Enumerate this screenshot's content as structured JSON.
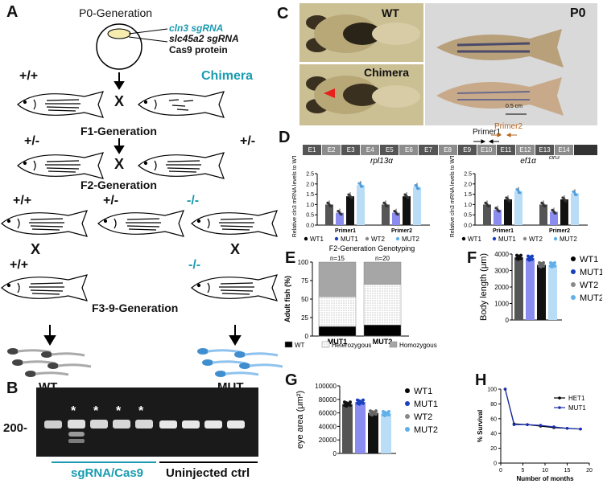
{
  "panel_labels": [
    "A",
    "B",
    "C",
    "D",
    "E",
    "F",
    "G",
    "H"
  ],
  "panelA": {
    "p0_title": "P0-Generation",
    "inject": [
      "cln3 sgRNA",
      "slc45a2 sgRNA",
      "Cas9 protein"
    ],
    "chimera": "Chimera",
    "wt_geno": "+/+",
    "f1_title": "F1-Generation",
    "f1_genos": [
      "+/-",
      "+/-"
    ],
    "f2_title": "F2-Generation",
    "f2_genos": [
      "+/+",
      "+/-",
      "-/-"
    ],
    "cross": "X",
    "f3_title": "F3-9-Generation",
    "wt_bottom_geno": "+/+",
    "mut_bottom_geno": "-/-",
    "wt_label": "WT",
    "mut_label": "MUT",
    "accent": "#1a9bb0"
  },
  "panelB": {
    "marker": "200-",
    "star": "*",
    "group1": "sgRNA/Cas9",
    "group2": "Uninjected ctrl",
    "accent": "#1a9bb0"
  },
  "panelC": {
    "wt": "WT",
    "chimera": "Chimera",
    "p0": "P0",
    "scale": "0.5 cm"
  },
  "panelD": {
    "primer1": "Primer1",
    "primer2": "Primer2",
    "exons": [
      "E1",
      "E2",
      "E3",
      "E4",
      "E5",
      "E6",
      "E7",
      "E8",
      "E9",
      "E10",
      "E11",
      "E12",
      "E13",
      "E14"
    ],
    "ylabel": "Relative cln3 mRNA levels to WT1",
    "left_title": "rpl13α",
    "right_title": "ef1α",
    "right_sup": "cln3",
    "yticks": [
      "0.0",
      "0.5",
      "1.0",
      "1.5",
      "2.0",
      "2.5"
    ],
    "xcats": [
      "Primer1",
      "Primer2"
    ],
    "legend": [
      "WT1",
      "MUT1",
      "WT2",
      "MUT2"
    ]
  },
  "panelE": {
    "title": "F2-Generation Genotyping",
    "ylabel": "Adult fish (%)",
    "yticks": [
      "0",
      "25",
      "50",
      "75",
      "100"
    ],
    "n_labels": [
      "n=15",
      "n=20"
    ],
    "xcats": [
      "MUT1",
      "MUT2"
    ],
    "legend": [
      "WT",
      "Heterozygous",
      "Homozygous"
    ]
  },
  "panelF": {
    "ylabel": "Body length (μm)",
    "yticks": [
      "0",
      "1000",
      "2000",
      "3000",
      "4000"
    ],
    "legend": [
      "WT1",
      "MUT1",
      "WT2",
      "MUT2"
    ]
  },
  "panelG": {
    "ylabel": "eye area (μm²)",
    "yticks": [
      "0",
      "20000",
      "40000",
      "60000",
      "80000",
      "100000"
    ],
    "legend": [
      "WT1",
      "MUT1",
      "WT2",
      "MUT2"
    ]
  },
  "panelH": {
    "ylabel": "% Survival",
    "xlabel": "Number of months",
    "yticks": [
      "0",
      "20",
      "40",
      "60",
      "80",
      "100"
    ],
    "xticks": [
      "0",
      "5",
      "10",
      "15",
      "20"
    ],
    "legend": [
      "HET1",
      "MUT1"
    ]
  },
  "colors": {
    "wt1": "#555555",
    "mut1": "#8a8cf0",
    "wt2": "#111111",
    "mut2": "#b9dcf7",
    "teal": "#1a9bb0",
    "primer2": "#b5651d"
  },
  "chart_data": [
    {
      "type": "bar",
      "title": "rpl13α",
      "ylabel": "Relative cln3 mRNA levels to WT1",
      "categories": [
        "Primer1",
        "Primer2"
      ],
      "ylim": [
        0,
        2.5
      ],
      "series": [
        {
          "name": "WT1",
          "values": [
            1.0,
            1.0
          ]
        },
        {
          "name": "MUT1",
          "values": [
            0.6,
            0.6
          ]
        },
        {
          "name": "WT2",
          "values": [
            1.4,
            1.4
          ]
        },
        {
          "name": "MUT2",
          "values": [
            1.95,
            1.85
          ]
        }
      ]
    },
    {
      "type": "bar",
      "title": "ef1α cln3",
      "ylabel": "Relative cln3 mRNA levels to WT1",
      "categories": [
        "Primer1",
        "Primer2"
      ],
      "ylim": [
        0,
        2.5
      ],
      "series": [
        {
          "name": "WT1",
          "values": [
            1.0,
            1.0
          ]
        },
        {
          "name": "MUT1",
          "values": [
            0.75,
            0.65
          ]
        },
        {
          "name": "WT2",
          "values": [
            1.25,
            1.25
          ]
        },
        {
          "name": "MUT2",
          "values": [
            1.65,
            1.55
          ]
        }
      ]
    },
    {
      "type": "bar",
      "title": "F2-Generation Genotyping",
      "ylabel": "Adult fish (%)",
      "categories": [
        "MUT1",
        "MUT2"
      ],
      "ylim": [
        0,
        100
      ],
      "stacked": true,
      "series": [
        {
          "name": "WT",
          "values": [
            13,
            15
          ]
        },
        {
          "name": "Heterozygous",
          "values": [
            40,
            55
          ]
        },
        {
          "name": "Homozygous",
          "values": [
            47,
            30
          ]
        }
      ]
    },
    {
      "type": "bar",
      "ylabel": "Body length (μm)",
      "categories": [
        "WT1",
        "MUT1",
        "WT2",
        "MUT2"
      ],
      "values": [
        3800,
        3750,
        3350,
        3350
      ],
      "ylim": [
        0,
        4000
      ]
    },
    {
      "type": "bar",
      "ylabel": "eye area (μm²)",
      "categories": [
        "WT1",
        "MUT1",
        "WT2",
        "MUT2"
      ],
      "values": [
        73000,
        76000,
        60000,
        59000
      ],
      "ylim": [
        0,
        100000
      ]
    },
    {
      "type": "line",
      "ylabel": "% Survival",
      "xlabel": "Number of months",
      "ylim": [
        0,
        100
      ],
      "xlim": [
        0,
        20
      ],
      "series": [
        {
          "name": "HET1",
          "x": [
            1,
            3,
            6,
            9,
            12,
            15,
            18
          ],
          "values": [
            100,
            53,
            52,
            50,
            48,
            47,
            46
          ]
        },
        {
          "name": "MUT1",
          "x": [
            1,
            3,
            6,
            9,
            12,
            15,
            18
          ],
          "values": [
            100,
            52,
            52,
            51,
            49,
            47,
            46
          ]
        }
      ]
    }
  ]
}
